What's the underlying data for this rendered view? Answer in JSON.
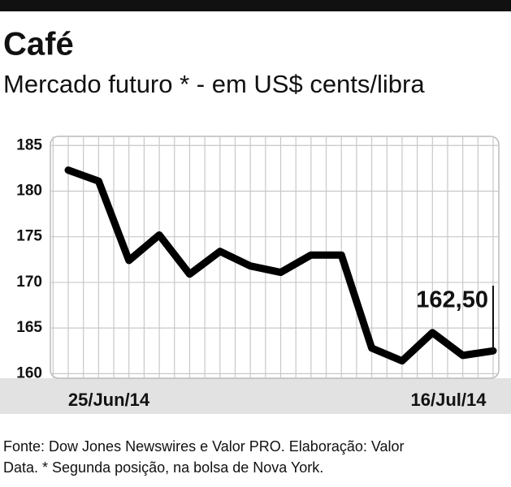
{
  "chart_data": {
    "type": "line",
    "title": "Café",
    "subtitle": "Mercado futuro * - em US$ cents/libra",
    "categories": [
      "25/Jun/14",
      null,
      null,
      null,
      null,
      null,
      null,
      null,
      null,
      null,
      null,
      null,
      null,
      null,
      "16/Jul/14"
    ],
    "values": [
      182.3,
      181.1,
      172.4,
      175.2,
      170.9,
      173.4,
      171.8,
      171.1,
      173.0,
      173.0,
      162.8,
      161.4,
      164.5,
      162.0,
      162.5
    ],
    "value_labels": [
      null,
      null,
      null,
      null,
      null,
      null,
      null,
      null,
      null,
      null,
      null,
      null,
      null,
      null,
      "162,50"
    ],
    "color": "#000000",
    "ylim": [
      159.5,
      186
    ],
    "yticks": [
      160,
      165,
      170,
      175,
      180,
      185
    ],
    "grid": true,
    "source": [
      "Fonte: Dow Jones Newswires e Valor PRO. Elaboração: Valor",
      "Data. * Segunda posição, na bolsa de Nova York."
    ]
  }
}
